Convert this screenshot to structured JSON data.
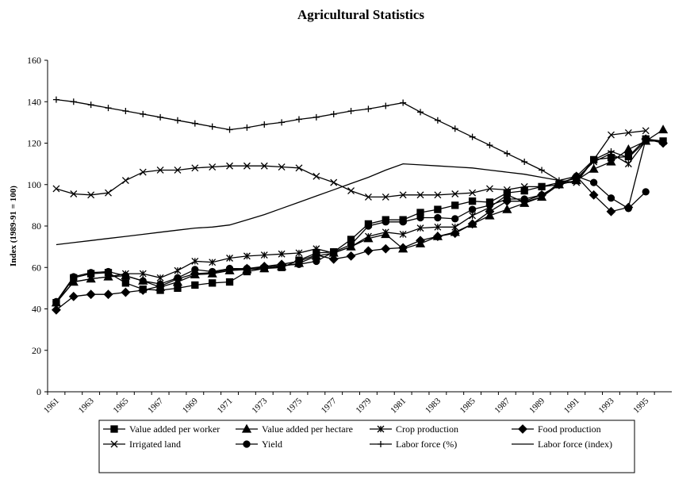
{
  "chart_data": {
    "type": "line",
    "title": "Agricultural Statistics",
    "y_label": "Index (1989-91 = 100)",
    "categories": [
      "1961",
      null,
      "1963",
      null,
      "1965",
      null,
      "1967",
      null,
      "1969",
      null,
      "1971",
      null,
      "1973",
      null,
      "1975",
      null,
      "1977",
      null,
      "1979",
      null,
      "1981",
      null,
      "1983",
      null,
      "1985",
      null,
      "1987",
      null,
      "1989",
      null,
      "1991",
      null,
      "1993",
      null,
      "1995",
      null
    ],
    "ylim": [
      0,
      160
    ],
    "yticks": [
      0,
      20,
      40,
      60,
      80,
      100,
      120,
      140,
      160
    ],
    "series": [
      {
        "name": "Value added per worker",
        "color": "#000000",
        "marker": "square",
        "values": [
          43,
          55,
          57,
          57.5,
          52.5,
          49.5,
          49,
          50,
          51.5,
          52.5,
          53,
          58,
          59.5,
          60,
          63.5,
          67,
          67.5,
          73.5,
          81,
          83,
          83,
          86.5,
          88,
          90,
          92,
          91.5,
          96,
          97,
          99,
          100,
          102,
          112,
          113,
          113.5,
          122,
          121
        ]
      },
      {
        "name": "Value added per hectare",
        "color": "#000000",
        "marker": "triangle",
        "values": [
          43,
          53,
          54.5,
          55.5,
          56,
          53.5,
          50.5,
          53,
          56.5,
          57,
          58.5,
          59,
          59.5,
          60.5,
          62,
          65.5,
          67,
          70,
          74,
          76,
          69,
          71.5,
          75,
          77,
          81,
          85,
          88,
          91,
          94,
          100,
          102,
          107.5,
          111,
          117,
          121,
          126.5
        ]
      },
      {
        "name": "Crop production",
        "color": "#000000",
        "marker": "asterisk",
        "values": [
          43,
          53,
          54.5,
          55.5,
          57,
          57,
          55,
          58.5,
          63,
          62.5,
          64.5,
          65.5,
          66,
          66.5,
          67,
          69,
          67,
          70,
          75,
          77,
          76,
          79,
          79.5,
          79.5,
          85,
          89,
          95,
          91.5,
          94,
          101,
          103,
          111,
          115,
          110,
          121,
          121
        ]
      },
      {
        "name": "Food production",
        "color": "#000000",
        "marker": "diamond",
        "values": [
          39.5,
          46,
          47,
          47,
          48,
          49,
          51,
          54.5,
          57,
          57.5,
          59,
          59.5,
          60.5,
          61.5,
          63,
          66,
          64,
          65.5,
          68,
          69,
          69.5,
          73,
          75,
          76.5,
          81,
          87,
          92,
          92,
          95,
          100,
          104,
          95,
          87,
          89,
          122,
          120
        ]
      },
      {
        "name": "Irrigated land",
        "color": "#000000",
        "marker": "x",
        "values": [
          98,
          95.5,
          95,
          96,
          102,
          106,
          107,
          107,
          108,
          108.5,
          109,
          109,
          109,
          108.5,
          108,
          104,
          101,
          97,
          94,
          94,
          95,
          95,
          95,
          95.5,
          96,
          98,
          97.5,
          99,
          99,
          101,
          101,
          112,
          124,
          125,
          126,
          null
        ]
      },
      {
        "name": "Yield",
        "color": "#000000",
        "marker": "circle",
        "values": [
          43.5,
          55.5,
          57.5,
          58,
          56,
          53.5,
          52,
          55,
          59,
          58,
          59.5,
          59.5,
          60,
          61,
          61.5,
          63,
          67.5,
          71,
          80,
          82,
          82,
          84,
          84,
          83.5,
          88,
          90,
          93,
          93,
          95,
          100,
          104,
          101,
          93.5,
          88.5,
          96.5,
          null
        ]
      },
      {
        "name": "Labor force (%)",
        "color": "#000000",
        "marker": "plus",
        "values": [
          141,
          140,
          138.5,
          137,
          135.5,
          134,
          132.5,
          131,
          129.5,
          128,
          126.5,
          127.5,
          129,
          130,
          131.5,
          132.5,
          134,
          135.5,
          136.5,
          138,
          139.5,
          135,
          131,
          127,
          123,
          119,
          115,
          111,
          107,
          102,
          104,
          112,
          116,
          113,
          121,
          121
        ]
      },
      {
        "name": "Labor force (index)",
        "color": "#000000",
        "marker": "none",
        "values": [
          71,
          72,
          73,
          74,
          75,
          76,
          77,
          78,
          79,
          79.5,
          80.5,
          83,
          85.5,
          88.5,
          91.5,
          94.5,
          97.5,
          100.5,
          103.5,
          107,
          110,
          109.5,
          109,
          108.5,
          108,
          107,
          106,
          105,
          103.5,
          102,
          101,
          null,
          null,
          null,
          null,
          null
        ]
      }
    ]
  }
}
